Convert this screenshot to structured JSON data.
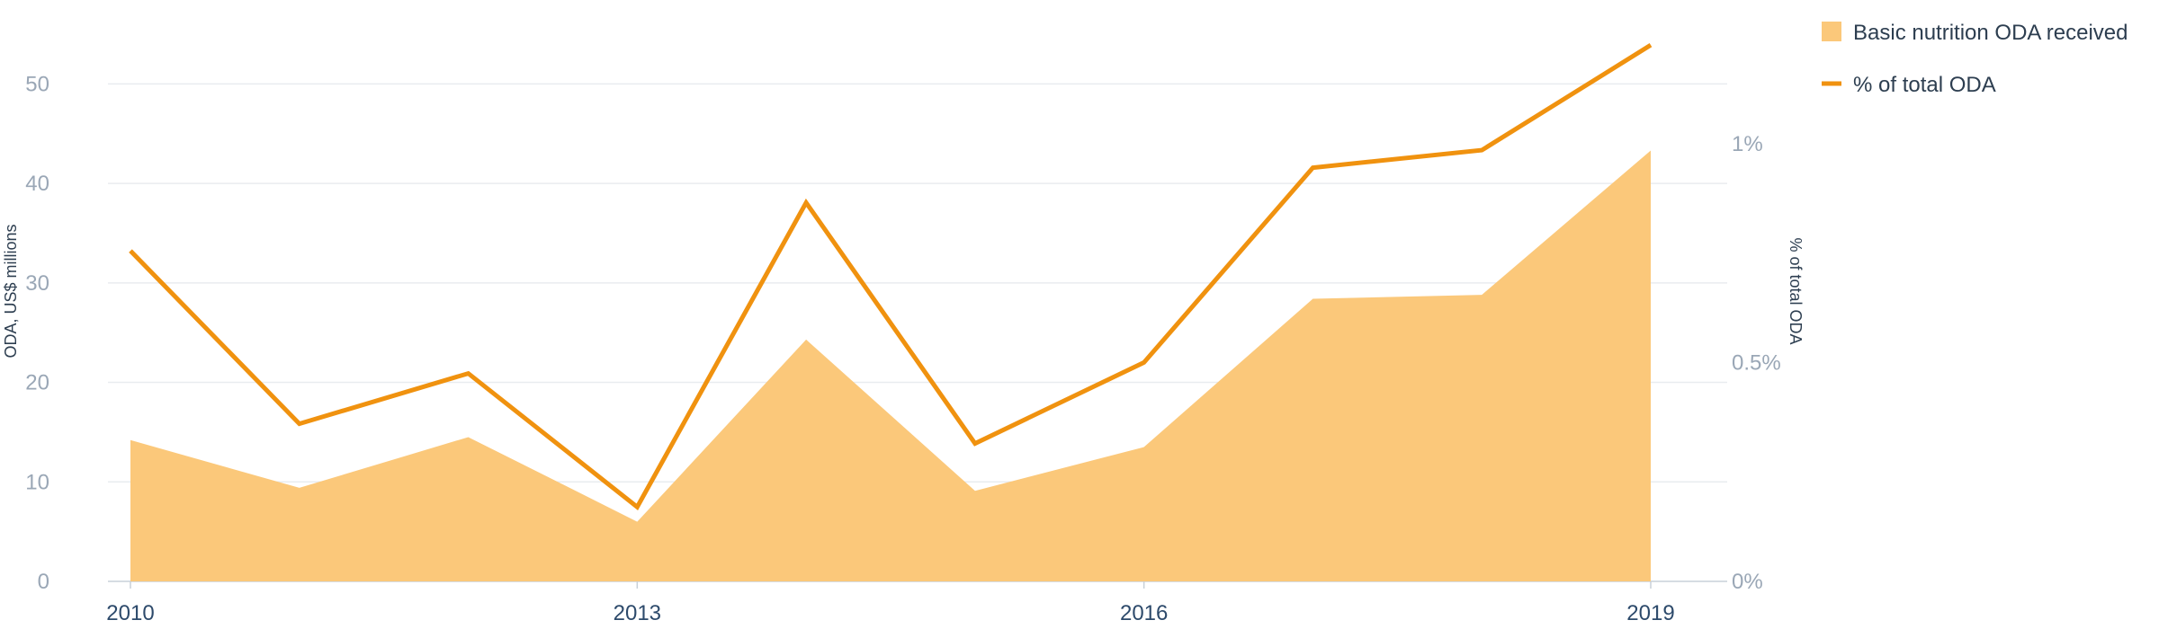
{
  "chart_data": {
    "type": "area+line",
    "years": [
      "2010",
      "2011",
      "2012",
      "2013",
      "2014",
      "2015",
      "2016",
      "2017",
      "2018",
      "2019"
    ],
    "x_tick_labels": [
      "2010",
      "2013",
      "2016",
      "2019"
    ],
    "series": [
      {
        "name": "Basic nutrition ODA received",
        "type": "area",
        "axis": "left",
        "color": "#fbc87a",
        "values": [
          14.2,
          9.4,
          14.5,
          6.0,
          24.3,
          9.1,
          13.5,
          28.4,
          28.8,
          43.3
        ]
      },
      {
        "name": "% of total ODA",
        "type": "line",
        "axis": "right",
        "color": "#f0920f",
        "values": [
          0.755,
          0.36,
          0.475,
          0.17,
          0.865,
          0.315,
          0.5,
          0.945,
          0.985,
          1.225
        ]
      }
    ],
    "left_axis": {
      "title": "ODA, US$ millions",
      "range": [
        0,
        55
      ],
      "ticks": [
        0,
        10,
        20,
        30,
        40,
        50
      ],
      "tick_labels": [
        "0",
        "10",
        "20",
        "30",
        "40",
        "50"
      ]
    },
    "right_axis": {
      "title": "% of total ODA",
      "range": [
        0,
        1.25
      ],
      "ticks": [
        0,
        0.5,
        1
      ],
      "tick_labels": [
        "0%",
        "0.5%",
        "1%"
      ]
    },
    "grid": true,
    "legend_position": "top-right"
  }
}
